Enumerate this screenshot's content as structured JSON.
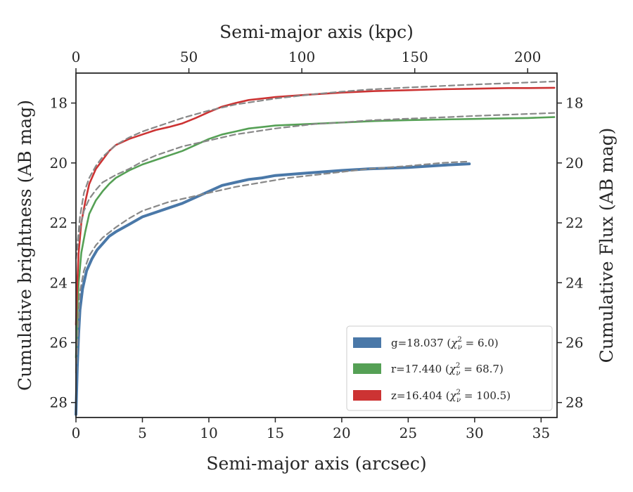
{
  "chart_data": {
    "type": "line",
    "xlabel": "Semi-major axis (arcsec)",
    "xlabel_top": "Semi-major axis (kpc)",
    "ylabel": "Cumulative brightness (AB mag)",
    "ylabel_right": "Cumulative Flux (AB mag)",
    "xlim": [
      0,
      36.2
    ],
    "ylim": [
      28.5,
      17.0
    ],
    "y_inverted": true,
    "xlim_top": [
      0,
      213
    ],
    "xticks": [
      0,
      5,
      10,
      15,
      20,
      25,
      30,
      35
    ],
    "xticks_top": [
      0,
      50,
      100,
      150,
      200
    ],
    "yticks": [
      18,
      20,
      22,
      24,
      26,
      28
    ],
    "grid": false,
    "legend_position": "bottom-right",
    "series": [
      {
        "name": "g=18.037 (χ²ν = 6.0)",
        "legend_main": "g=18.037 (",
        "legend_var": "χ",
        "legend_sup": "2",
        "legend_sub": "ν",
        "legend_rest": " = 6.0)",
        "color": "#4a78a8",
        "style": "solid",
        "x": [
          0.0,
          0.1,
          0.2,
          0.3,
          0.5,
          0.8,
          1.2,
          1.6,
          2.0,
          2.5,
          3.0,
          4.0,
          5.0,
          6.0,
          7.0,
          8.0,
          9.0,
          10.0,
          11.0,
          12.0,
          13.0,
          14.0,
          15.0,
          17.0,
          20.0,
          22.0,
          25.0,
          27.5,
          29.6
        ],
        "y": [
          28.4,
          26.8,
          25.7,
          24.9,
          24.2,
          23.6,
          23.2,
          22.9,
          22.7,
          22.45,
          22.3,
          22.05,
          21.8,
          21.65,
          21.5,
          21.35,
          21.15,
          20.95,
          20.75,
          20.65,
          20.55,
          20.5,
          20.42,
          20.35,
          20.25,
          20.2,
          20.15,
          20.08,
          20.03
        ]
      },
      {
        "name": "r=17.440 (χ²ν = 68.7)",
        "legend_main": "r=17.440 (",
        "legend_var": "χ",
        "legend_sup": "2",
        "legend_sub": "ν",
        "legend_rest": " = 68.7)",
        "color": "#55a055",
        "style": "solid",
        "x": [
          0.0,
          0.1,
          0.2,
          0.4,
          0.7,
          1.0,
          1.5,
          2.0,
          2.5,
          3.0,
          4.0,
          5.0,
          6.0,
          7.0,
          8.0,
          9.0,
          10.0,
          11.0,
          12.0,
          13.0,
          15.0,
          17.5,
          20.0,
          22.5,
          25.0,
          27.5,
          30.0,
          32.5,
          34.0,
          36.0
        ],
        "y": [
          26.5,
          25.0,
          24.0,
          23.0,
          22.3,
          21.7,
          21.25,
          20.95,
          20.7,
          20.5,
          20.25,
          20.05,
          19.9,
          19.75,
          19.6,
          19.4,
          19.2,
          19.05,
          18.95,
          18.85,
          18.75,
          18.7,
          18.65,
          18.6,
          18.57,
          18.55,
          18.53,
          18.51,
          18.5,
          18.47
        ]
      },
      {
        "name": "z=16.404 (χ²ν = 100.5)",
        "legend_main": "z=16.404 (",
        "legend_var": "χ",
        "legend_sup": "2",
        "legend_sub": "ν",
        "legend_rest": " = 100.5)",
        "color": "#cc3333",
        "style": "solid",
        "x": [
          0.0,
          0.1,
          0.2,
          0.4,
          0.7,
          1.0,
          1.5,
          2.0,
          2.5,
          3.0,
          4.0,
          5.0,
          6.0,
          7.0,
          8.0,
          9.0,
          10.0,
          11.0,
          12.0,
          13.0,
          15.0,
          17.5,
          20.0,
          22.5,
          25.0,
          27.5,
          30.0,
          32.5,
          34.0,
          36.0
        ],
        "y": [
          25.4,
          24.0,
          23.0,
          22.0,
          21.3,
          20.7,
          20.2,
          19.9,
          19.6,
          19.4,
          19.2,
          19.05,
          18.9,
          18.8,
          18.68,
          18.5,
          18.3,
          18.12,
          18.0,
          17.9,
          17.8,
          17.72,
          17.65,
          17.6,
          17.57,
          17.54,
          17.52,
          17.5,
          17.5,
          17.49
        ]
      },
      {
        "name": "",
        "color": "#888888",
        "style": "dashed",
        "x": [
          0.0,
          0.3,
          0.6,
          1.0,
          1.5,
          2.0,
          3.0,
          4.0,
          5.0,
          6.0,
          7.0,
          8.0,
          10.0,
          12.0,
          14.0,
          16.0,
          18.0,
          20.0,
          22.0,
          25.0,
          27.5,
          29.6
        ],
        "y": [
          27.0,
          24.3,
          23.6,
          23.1,
          22.75,
          22.5,
          22.15,
          21.85,
          21.6,
          21.45,
          21.3,
          21.2,
          21.0,
          20.8,
          20.65,
          20.5,
          20.4,
          20.3,
          20.2,
          20.1,
          20.0,
          19.95
        ]
      },
      {
        "name": "",
        "color": "#888888",
        "style": "dashed",
        "x": [
          0.0,
          0.3,
          0.6,
          1.0,
          1.5,
          2.0,
          3.0,
          4.0,
          5.0,
          6.0,
          7.0,
          8.0,
          10.0,
          12.0,
          15.0,
          18.0,
          20.0,
          22.0,
          25.0,
          28.0,
          30.0,
          33.0,
          36.0
        ],
        "y": [
          23.2,
          22.2,
          21.6,
          21.2,
          20.9,
          20.65,
          20.4,
          20.2,
          19.95,
          19.75,
          19.6,
          19.45,
          19.25,
          19.05,
          18.85,
          18.7,
          18.65,
          18.58,
          18.52,
          18.47,
          18.43,
          18.38,
          18.33
        ]
      },
      {
        "name": "",
        "color": "#888888",
        "style": "dashed",
        "x": [
          0.0,
          0.3,
          0.6,
          1.0,
          1.5,
          2.0,
          3.0,
          4.0,
          5.0,
          6.0,
          7.0,
          8.0,
          10.0,
          12.0,
          15.0,
          18.0,
          20.0,
          22.0,
          25.0,
          28.0,
          30.0,
          33.0,
          36.0
        ],
        "y": [
          23.2,
          21.8,
          21.0,
          20.5,
          20.1,
          19.8,
          19.4,
          19.15,
          18.95,
          18.8,
          18.65,
          18.5,
          18.25,
          18.05,
          17.85,
          17.7,
          17.62,
          17.55,
          17.48,
          17.42,
          17.38,
          17.33,
          17.28
        ]
      }
    ]
  }
}
